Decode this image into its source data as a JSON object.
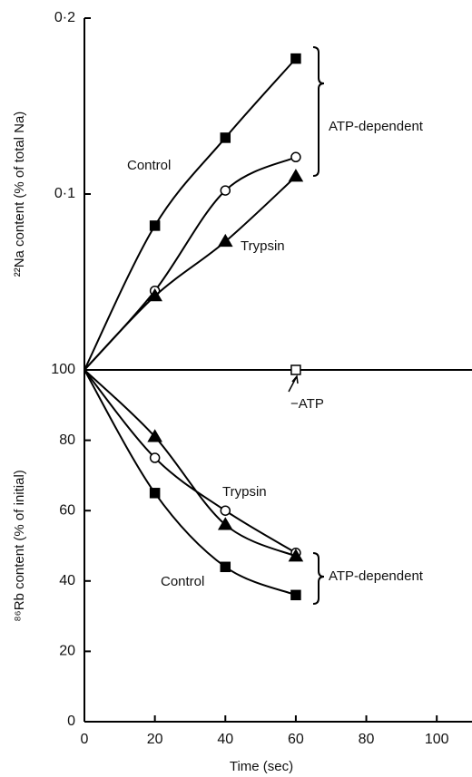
{
  "chart_data": [
    {
      "type": "line",
      "y_label": "²²Na content (% of total Na)",
      "xlim": [
        0,
        110
      ],
      "ylim": [
        0,
        0.2
      ],
      "yticks": [
        {
          "value": 0.1,
          "label": "0·1"
        },
        {
          "value": 0.2,
          "label": "0·2"
        }
      ],
      "annotations": [
        "ATP-dependent"
      ],
      "series": [
        {
          "name": "Control",
          "color": "#000000",
          "marker": "square",
          "filled": true,
          "x": [
            0,
            20,
            40,
            60
          ],
          "values": [
            0,
            0.082,
            0.132,
            0.177
          ]
        },
        {
          "color": "#000000",
          "marker": "circle",
          "filled": false,
          "x": [
            0,
            20,
            40,
            60
          ],
          "values": [
            0,
            0.045,
            0.102,
            0.121
          ]
        },
        {
          "name": "Trypsin",
          "color": "#000000",
          "marker": "triangle",
          "filled": true,
          "x": [
            0,
            20,
            40,
            60
          ],
          "values": [
            0,
            0.042,
            0.073,
            0.11
          ]
        }
      ]
    },
    {
      "type": "line",
      "y_label": "⁸⁶Rb content (% of initial)",
      "x_label": "Time (sec)",
      "xlim": [
        0,
        110
      ],
      "xticks": [
        0,
        20,
        40,
        60,
        80,
        100
      ],
      "ylim": [
        0,
        100
      ],
      "yticks": [
        0,
        20,
        40,
        60,
        80,
        100
      ],
      "annotations": [
        "ATP-dependent"
      ],
      "series": [
        {
          "name": "Control",
          "color": "#000000",
          "marker": "square",
          "filled": true,
          "x": [
            0,
            20,
            40,
            60
          ],
          "values": [
            100,
            65,
            44,
            36
          ]
        },
        {
          "color": "#000000",
          "marker": "circle",
          "filled": false,
          "x": [
            0,
            20,
            40,
            60
          ],
          "values": [
            100,
            75,
            60,
            48
          ]
        },
        {
          "name": "Trypsin",
          "color": "#000000",
          "marker": "triangle",
          "filled": true,
          "x": [
            0,
            20,
            40,
            60
          ],
          "values": [
            100,
            81,
            56,
            47
          ]
        },
        {
          "name": "−ATP",
          "color": "#000000",
          "marker": "square",
          "filled": false,
          "x": [
            60
          ],
          "values": [
            100
          ]
        }
      ]
    }
  ]
}
